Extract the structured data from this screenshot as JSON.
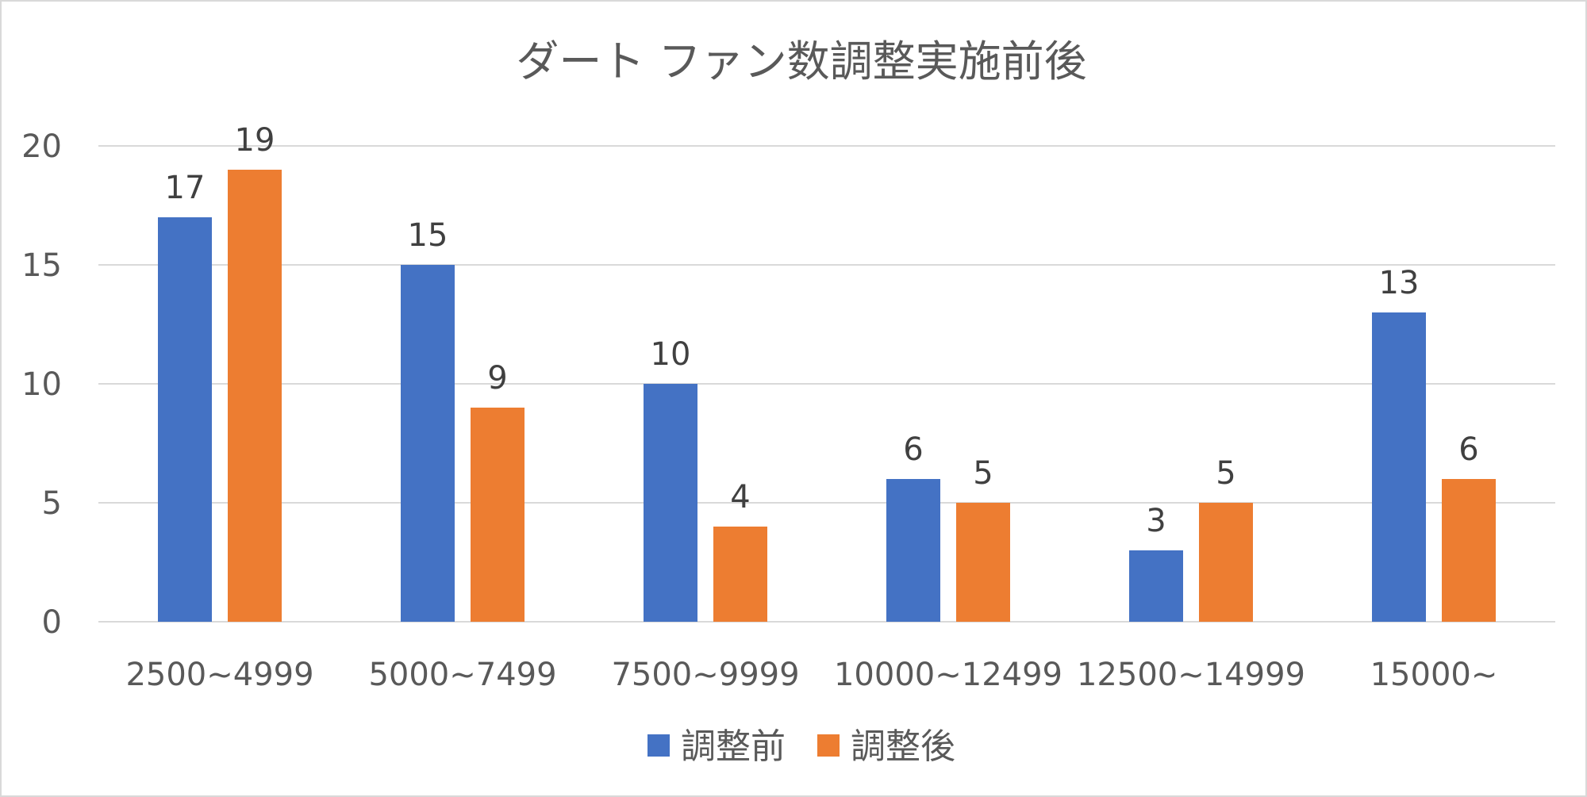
{
  "chart_data": {
    "type": "bar",
    "title": "ダート ファン数調整実施前後",
    "xlabel": "",
    "ylabel": "",
    "categories": [
      "2500~4999",
      "5000~7499",
      "7500~9999",
      "10000~12499",
      "12500~14999",
      "15000~"
    ],
    "series": [
      {
        "name": "調整前",
        "color": "#4472c4",
        "values": [
          17,
          15,
          10,
          6,
          3,
          13
        ]
      },
      {
        "name": "調整後",
        "color": "#ed7d31",
        "values": [
          19,
          9,
          4,
          5,
          5,
          6
        ]
      }
    ],
    "ylim": [
      0,
      20
    ],
    "yticks": [
      0,
      5,
      10,
      15,
      20
    ],
    "grid": true,
    "legend_position": "bottom",
    "data_labels": true
  }
}
